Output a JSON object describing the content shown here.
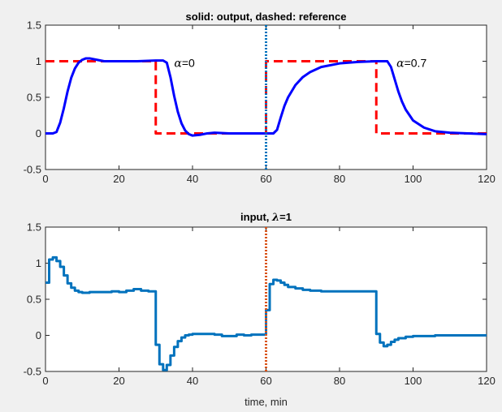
{
  "chart_data": [
    {
      "type": "line",
      "title": "solid: output, dashed: reference",
      "xlabel": "",
      "ylabel": "",
      "xlim": [
        0,
        120
      ],
      "ylim": [
        -0.5,
        1.5
      ],
      "xticks": [
        "0",
        "20",
        "40",
        "60",
        "80",
        "100",
        "120"
      ],
      "yticks": [
        "-0.5",
        "0",
        "0.5",
        "1",
        "1.5"
      ],
      "grid": false,
      "series": [
        {
          "style": "dashed",
          "color": "#ff0000",
          "x": [
            0,
            30,
            30,
            60,
            60,
            90,
            90,
            120
          ],
          "y": [
            1,
            1,
            0,
            0,
            1,
            1,
            0,
            0
          ]
        },
        {
          "style": "solid",
          "color": "#0000ff",
          "x": [
            0,
            2,
            3,
            4,
            5,
            6,
            7,
            8,
            9,
            10,
            11,
            12,
            14,
            16,
            20,
            25,
            30,
            31,
            32,
            33,
            34,
            35,
            36,
            37,
            38,
            39,
            40,
            42,
            44,
            46,
            50,
            55,
            60,
            62,
            63,
            64,
            65,
            66,
            68,
            70,
            72,
            75,
            80,
            85,
            90,
            92,
            93,
            94,
            95,
            96,
            97,
            98,
            100,
            103,
            106,
            110,
            115,
            120
          ],
          "y": [
            0,
            0,
            0.02,
            0.15,
            0.35,
            0.58,
            0.77,
            0.9,
            0.98,
            1.02,
            1.04,
            1.04,
            1.02,
            1.0,
            1.0,
            1.0,
            1.01,
            1.01,
            1.01,
            0.98,
            0.78,
            0.52,
            0.3,
            0.14,
            0.04,
            -0.01,
            -0.03,
            -0.02,
            0.0,
            0.01,
            0.0,
            0.0,
            0.0,
            0.0,
            0.05,
            0.22,
            0.38,
            0.5,
            0.67,
            0.78,
            0.85,
            0.92,
            0.97,
            0.99,
            1.0,
            1.0,
            1.0,
            0.92,
            0.75,
            0.58,
            0.44,
            0.33,
            0.18,
            0.08,
            0.03,
            0.01,
            0.0,
            -0.01
          ],
          "width": 3
        },
        {
          "style": "dotted",
          "color": "#0072bd",
          "x": [
            60,
            60
          ],
          "y": [
            -0.5,
            1.5
          ]
        }
      ],
      "annotations": [
        {
          "x": 35,
          "y": 0.98,
          "symbol": "α",
          "text": "=0"
        },
        {
          "x": 95.5,
          "y": 0.98,
          "symbol": "α",
          "text": "=0.7"
        }
      ]
    },
    {
      "type": "line",
      "title": "input, λ=1",
      "xlabel": "time, min",
      "ylabel": "",
      "xlim": [
        0,
        120
      ],
      "ylim": [
        -0.5,
        1.5
      ],
      "xticks": [
        "0",
        "20",
        "40",
        "60",
        "80",
        "100",
        "120"
      ],
      "yticks": [
        "-0.5",
        "0",
        "0.5",
        "1",
        "1.5"
      ],
      "grid": false,
      "series": [
        {
          "style": "step",
          "color": "#0072bd",
          "x": [
            0,
            1,
            2,
            3,
            4,
            5,
            6,
            7,
            8,
            9,
            10,
            12,
            14,
            16,
            18,
            20,
            22,
            24,
            26,
            28,
            30,
            31,
            32,
            33,
            34,
            35,
            36,
            37,
            38,
            39,
            40,
            42,
            44,
            46,
            48,
            50,
            52,
            54,
            56,
            58,
            60,
            61,
            62,
            63,
            64,
            65,
            66,
            68,
            70,
            72,
            75,
            80,
            85,
            90,
            91,
            92,
            93,
            94,
            95,
            96,
            98,
            100,
            103,
            106,
            110,
            115,
            120
          ],
          "y": [
            0.73,
            1.05,
            1.08,
            1.03,
            0.95,
            0.83,
            0.72,
            0.66,
            0.62,
            0.6,
            0.59,
            0.6,
            0.6,
            0.6,
            0.61,
            0.6,
            0.62,
            0.64,
            0.62,
            0.61,
            -0.13,
            -0.4,
            -0.48,
            -0.41,
            -0.28,
            -0.16,
            -0.08,
            -0.03,
            0.0,
            0.01,
            0.02,
            0.02,
            0.02,
            0.01,
            -0.01,
            -0.01,
            0.01,
            0.0,
            0.01,
            0.01,
            0.35,
            0.71,
            0.77,
            0.76,
            0.73,
            0.7,
            0.67,
            0.65,
            0.63,
            0.62,
            0.61,
            0.61,
            0.61,
            0.02,
            -0.1,
            -0.15,
            -0.13,
            -0.09,
            -0.06,
            -0.04,
            -0.02,
            -0.01,
            -0.01,
            0.0,
            0.0,
            0.0,
            0.0
          ],
          "width": 3
        },
        {
          "style": "dotted",
          "color": "#d95319",
          "x": [
            60,
            60
          ],
          "y": [
            -0.5,
            1.5
          ]
        }
      ]
    }
  ]
}
